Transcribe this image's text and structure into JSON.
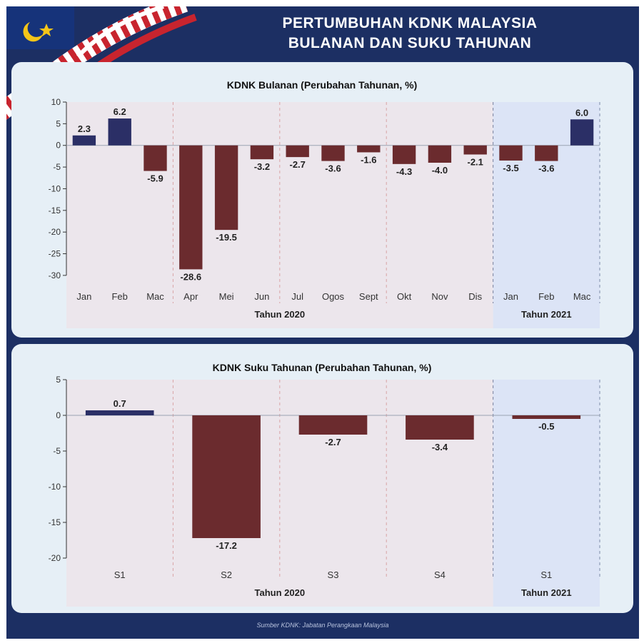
{
  "header": {
    "title_line1": "PERTUMBUHAN KDNK MALAYSIA",
    "title_line2": "BULANAN DAN SUKU TAHUNAN"
  },
  "footer": {
    "source": "Sumber KDNK: Jabatan Perangkaan Malaysia"
  },
  "colors": {
    "positive": "#2b2f66",
    "negative": "#6b2b2e",
    "bg_2020": "#ece6ec",
    "bg_2021": "#dce4f6",
    "frame": "#1c2f63"
  },
  "chart_data": [
    {
      "type": "bar",
      "title": "KDNK Bulanan (Perubahan Tahunan, %)",
      "categories": [
        "Jan",
        "Feb",
        "Mac",
        "Apr",
        "Mei",
        "Jun",
        "Jul",
        "Ogos",
        "Sept",
        "Okt",
        "Nov",
        "Dis",
        "Jan",
        "Feb",
        "Mac"
      ],
      "values": [
        2.3,
        6.2,
        -5.9,
        -28.6,
        -19.5,
        -3.2,
        -2.7,
        -3.6,
        -1.6,
        -4.3,
        -4.0,
        -2.1,
        -3.5,
        -3.6,
        6.0
      ],
      "data_labels": [
        "2.3",
        "6.2",
        "-5.9",
        "-28.6",
        "-19.5",
        "-3.2",
        "-2.7",
        "-3.6",
        "-1.6",
        "-4.3",
        "-4.0",
        "-2.1",
        "-3.5",
        "-3.6",
        "6.0"
      ],
      "groups": [
        {
          "label": "Tahun 2020",
          "count": 12
        },
        {
          "label": "Tahun 2021",
          "count": 3
        }
      ],
      "yticks": [
        10,
        5,
        0,
        -5,
        -10,
        -15,
        -20,
        -25,
        -30
      ],
      "ytick_labels": [
        "10",
        "5",
        "0",
        "-5",
        "-10",
        "-15",
        "-20",
        "-25",
        "-30"
      ],
      "ylim": [
        -31.5,
        10
      ],
      "grid": false
    },
    {
      "type": "bar",
      "title": "KDNK Suku Tahunan (Perubahan Tahunan, %)",
      "categories": [
        "S1",
        "S2",
        "S3",
        "S4",
        "S1"
      ],
      "values": [
        0.7,
        -17.2,
        -2.7,
        -3.4,
        -0.5
      ],
      "data_labels": [
        "0.7",
        "-17.2",
        "-2.7",
        "-3.4",
        "-0.5"
      ],
      "groups": [
        {
          "label": "Tahun 2020",
          "count": 4
        },
        {
          "label": "Tahun 2021",
          "count": 1
        }
      ],
      "yticks": [
        5,
        0,
        -5,
        -10,
        -15,
        -20
      ],
      "ytick_labels": [
        "5",
        "0",
        "-5",
        "-10",
        "-15",
        "-20"
      ],
      "ylim": [
        -20,
        5
      ],
      "grid": false
    }
  ]
}
